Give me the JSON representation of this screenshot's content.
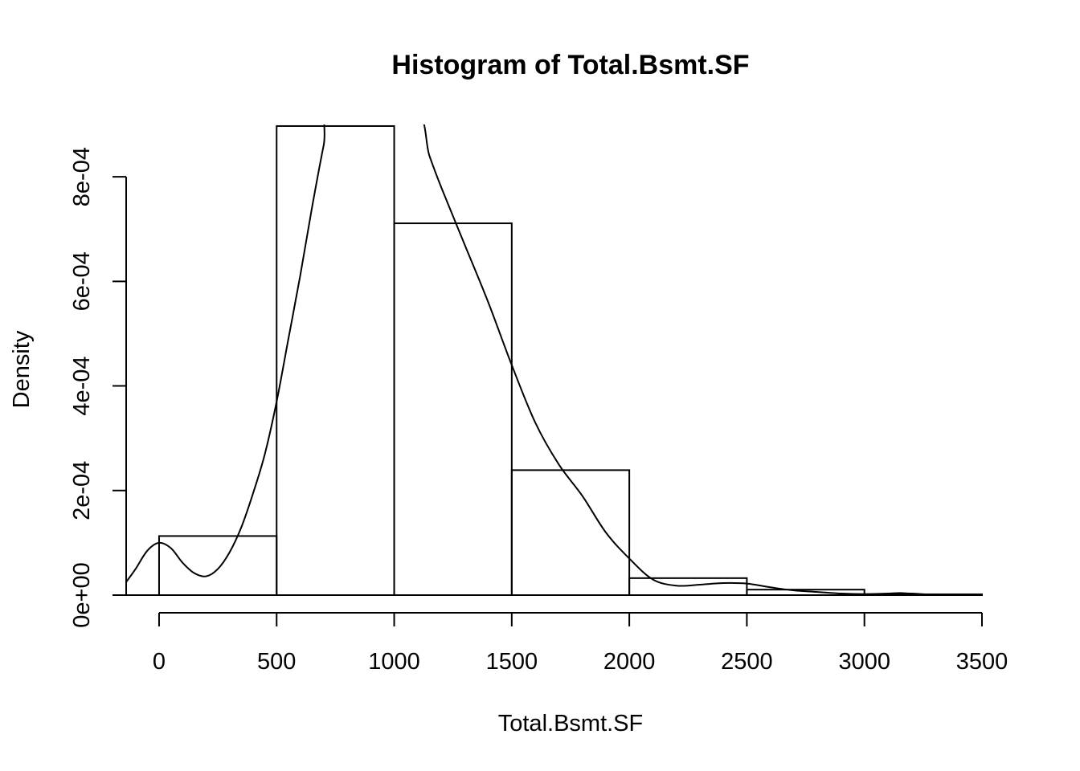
{
  "chart_data": {
    "type": "bar",
    "title": "Histogram of Total.Bsmt.SF",
    "xlabel": "Total.Bsmt.SF",
    "ylabel": "Density",
    "bins": [
      {
        "from": 0,
        "to": 500,
        "density": 0.000113
      },
      {
        "from": 500,
        "to": 1000,
        "density": 0.000897
      },
      {
        "from": 1000,
        "to": 1500,
        "density": 0.000711
      },
      {
        "from": 1500,
        "to": 2000,
        "density": 0.000239
      },
      {
        "from": 2000,
        "to": 2500,
        "density": 3.25e-05
      },
      {
        "from": 2500,
        "to": 3000,
        "density": 1.05e-05
      },
      {
        "from": 3000,
        "to": 3500,
        "density": 1.5e-06
      }
    ],
    "xlim": [
      -140,
      3500
    ],
    "ylim": [
      0,
      0.0009
    ],
    "x_ticks": [
      {
        "value": 0,
        "label": "0"
      },
      {
        "value": 500,
        "label": "500"
      },
      {
        "value": 1000,
        "label": "1000"
      },
      {
        "value": 1500,
        "label": "1500"
      },
      {
        "value": 2000,
        "label": "2000"
      },
      {
        "value": 2500,
        "label": "2500"
      },
      {
        "value": 3000,
        "label": "3000"
      },
      {
        "value": 3500,
        "label": "3500"
      }
    ],
    "y_ticks": [
      {
        "value": 0,
        "label": "0e+00"
      },
      {
        "value": 0.0002,
        "label": "2e-04"
      },
      {
        "value": 0.0004,
        "label": "4e-04"
      },
      {
        "value": 0.0006,
        "label": "6e-04"
      },
      {
        "value": 0.0008,
        "label": "8e-04"
      }
    ],
    "density_curve": {
      "x": [
        -140,
        -100,
        -50,
        0,
        50,
        100,
        150,
        200,
        250,
        300,
        350,
        400,
        450,
        500,
        550,
        600,
        650,
        700,
        740,
        1075,
        1150,
        1200,
        1300,
        1400,
        1500,
        1600,
        1700,
        1800,
        1900,
        2000,
        2100,
        2200,
        2300,
        2400,
        2500,
        2600,
        2700,
        2800,
        2900,
        3000,
        3100,
        3150,
        3200,
        3300,
        3400,
        3500
      ],
      "y": [
        2.5e-05,
        5e-05,
        8.5e-05,
        0.0001,
        9e-05,
        6.2e-05,
        4.2e-05,
        3.6e-05,
        5e-05,
        8.2e-05,
        0.00013,
        0.000195,
        0.00027,
        0.00037,
        0.00049,
        0.00061,
        0.00074,
        0.00086,
        0.00094,
        0.00094,
        0.00084,
        0.00078,
        0.00067,
        0.00056,
        0.00044,
        0.00033,
        0.00025,
        0.00019,
        0.00012,
        7e-05,
        3e-05,
        1.8e-05,
        2e-05,
        2.3e-05,
        2.2e-05,
        1.5e-05,
        9e-06,
        6e-06,
        3e-06,
        2e-06,
        3e-06,
        4e-06,
        3e-06,
        1e-06,
        1e-06,
        5e-07
      ]
    }
  }
}
